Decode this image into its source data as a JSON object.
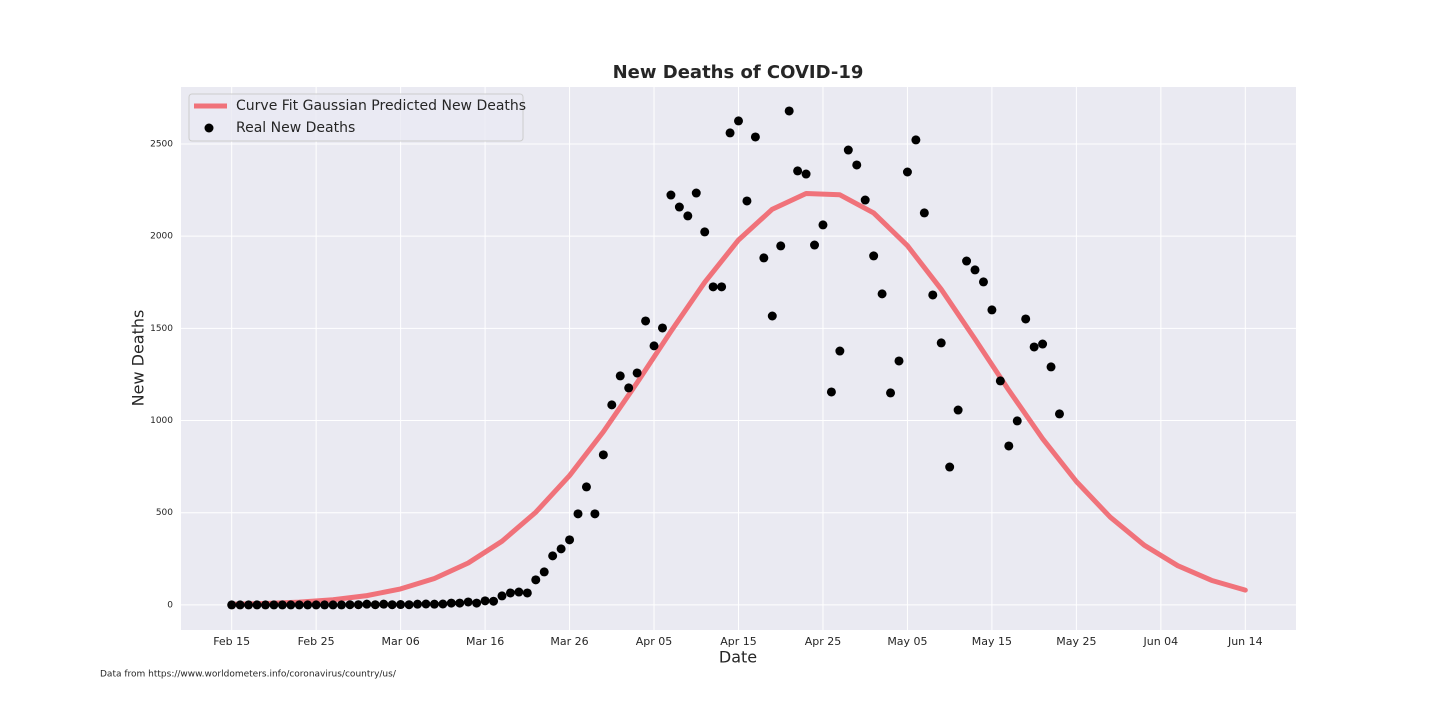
{
  "chart_data": {
    "type": "combo",
    "title": "New Deaths of COVID-19",
    "x_label": "Date",
    "y_label": "New Deaths",
    "annotation": "Data from https://www.worldometers.info/coronavirus/country/us/",
    "xlim": [
      "Feb 09",
      "Jun 20"
    ],
    "xticks": [
      "Feb 15",
      "Feb 25",
      "Mar 06",
      "Mar 16",
      "Mar 26",
      "Apr 05",
      "Apr 15",
      "Apr 25",
      "May 05",
      "May 15",
      "May 25",
      "Jun 04",
      "Jun 14"
    ],
    "ylim": [
      -136,
      2809
    ],
    "yticks": [
      0,
      500,
      1000,
      1500,
      2000,
      2500
    ],
    "grid": true,
    "legend": "upper left",
    "series": [
      {
        "name": "Curve Fit Gaussian Predicted New Deaths",
        "type": "line",
        "color": "#f0727a",
        "x": [
          "Feb 15",
          "Feb 19",
          "Feb 23",
          "Feb 27",
          "Mar 02",
          "Mar 06",
          "Mar 10",
          "Mar 14",
          "Mar 18",
          "Mar 22",
          "Mar 26",
          "Mar 30",
          "Apr 03",
          "Apr 07",
          "Apr 11",
          "Apr 15",
          "Apr 19",
          "Apr 23",
          "Apr 27",
          "May 01",
          "May 05",
          "May 09",
          "May 13",
          "May 17",
          "May 21",
          "May 25",
          "May 29",
          "Jun 02",
          "Jun 06",
          "Jun 10",
          "Jun 14"
        ],
        "values": [
          3.7,
          7.7,
          15.0,
          28.0,
          50.4,
          86.8,
          143.4,
          227.3,
          345.2,
          502.7,
          701.6,
          939.3,
          1205.6,
          1483.3,
          1749.7,
          1979.3,
          2146.2,
          2231.5,
          2224.5,
          2126.0,
          1948.2,
          1711.6,
          1441.6,
          1164.4,
          901.6,
          669.4,
          476.4,
          325.1,
          212.8,
          133.3,
          80.3
        ]
      },
      {
        "name": "Real New Deaths",
        "type": "scatter",
        "color": "#000000",
        "x": [
          "Feb 15",
          "Feb 16",
          "Feb 17",
          "Feb 18",
          "Feb 19",
          "Feb 20",
          "Feb 21",
          "Feb 22",
          "Feb 23",
          "Feb 24",
          "Feb 25",
          "Feb 26",
          "Feb 27",
          "Feb 28",
          "Feb 29",
          "Mar 01",
          "Mar 02",
          "Mar 03",
          "Mar 04",
          "Mar 05",
          "Mar 06",
          "Mar 07",
          "Mar 08",
          "Mar 09",
          "Mar 10",
          "Mar 11",
          "Mar 12",
          "Mar 13",
          "Mar 14",
          "Mar 15",
          "Mar 16",
          "Mar 17",
          "Mar 18",
          "Mar 19",
          "Mar 20",
          "Mar 21",
          "Mar 22",
          "Mar 23",
          "Mar 24",
          "Mar 25",
          "Mar 26",
          "Mar 27",
          "Mar 28",
          "Mar 29",
          "Mar 30",
          "Mar 31",
          "Apr 01",
          "Apr 02",
          "Apr 03",
          "Apr 04",
          "Apr 05",
          "Apr 06",
          "Apr 07",
          "Apr 08",
          "Apr 09",
          "Apr 10",
          "Apr 11",
          "Apr 12",
          "Apr 13",
          "Apr 14",
          "Apr 15",
          "Apr 16",
          "Apr 17",
          "Apr 18",
          "Apr 19",
          "Apr 20",
          "Apr 21",
          "Apr 22",
          "Apr 23",
          "Apr 24",
          "Apr 25",
          "Apr 26",
          "Apr 27",
          "Apr 28",
          "Apr 29",
          "Apr 30",
          "May 01",
          "May 02",
          "May 03",
          "May 04",
          "May 05",
          "May 06",
          "May 07",
          "May 08",
          "May 09",
          "May 10",
          "May 11",
          "May 12",
          "May 13",
          "May 14",
          "May 15",
          "May 16",
          "May 17",
          "May 18",
          "May 19",
          "May 20",
          "May 21",
          "May 22",
          "May 23"
        ],
        "values": [
          0,
          0,
          0,
          0,
          0,
          0,
          0,
          0,
          0,
          0,
          0,
          0,
          0,
          0,
          1,
          1,
          4,
          1,
          4,
          1,
          2,
          1,
          4,
          5,
          4,
          5,
          10,
          10,
          16,
          10,
          22,
          20,
          49,
          65,
          70,
          65,
          136,
          179,
          266,
          304,
          353,
          494,
          640,
          494,
          814,
          1085,
          1242,
          1177,
          1258,
          1540,
          1405,
          1502,
          2223,
          2158,
          2110,
          2234,
          2023,
          1725,
          1725,
          2560,
          2625,
          2191,
          2538,
          1882,
          1567,
          1947,
          2679,
          2354,
          2337,
          1952,
          2061,
          1155,
          1377,
          2467,
          2386,
          2196,
          1893,
          1687,
          1150,
          1323,
          2348,
          2522,
          2126,
          1681,
          1421,
          748,
          1057,
          1865,
          1817,
          1752,
          1600,
          1215,
          862,
          998,
          1551,
          1399,
          1415,
          1291,
          1036
        ]
      }
    ]
  }
}
